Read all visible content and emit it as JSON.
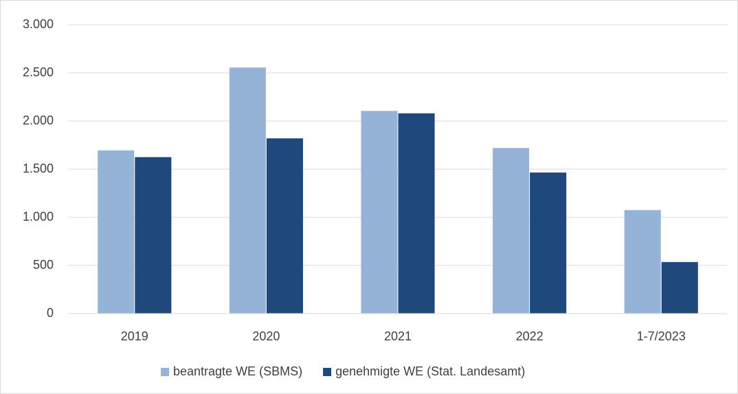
{
  "chart_data": {
    "type": "bar",
    "categories": [
      "2019",
      "2020",
      "2021",
      "2022",
      "1-7/2023"
    ],
    "series": [
      {
        "name": "beantragte WE (SBMS)",
        "color": "#95b3d7",
        "values": [
          1695,
          2555,
          2105,
          1720,
          1075
        ]
      },
      {
        "name": "genehmigte WE (Stat. Landesamt)",
        "color": "#1f497d",
        "values": [
          1625,
          1820,
          2080,
          1465,
          535
        ]
      }
    ],
    "ylim": [
      0,
      3000
    ],
    "yticks": [
      0,
      500,
      {
        "value": 1000,
        "label": "1.000"
      },
      {
        "value": 1500,
        "label": "1.500"
      },
      {
        "value": 2000,
        "label": "2.000"
      },
      {
        "value": 2500,
        "label": "2.500"
      },
      {
        "value": 3000,
        "label": "3.000"
      }
    ],
    "grid": true,
    "legend": "bottom"
  }
}
